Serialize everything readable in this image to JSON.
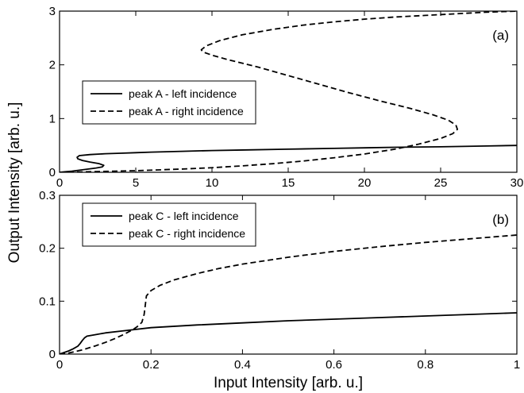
{
  "figure": {
    "ylabel": "Output Intensity [arb. u.]",
    "xlabel": "Input Intensity [arb. u.]"
  },
  "colors": {
    "line": "#000000",
    "background": "#ffffff"
  },
  "chart_data": [
    {
      "type": "line",
      "panel_label": "(a)",
      "xlim": [
        0,
        30
      ],
      "ylim": [
        0,
        3
      ],
      "x_ticks": [
        0,
        5,
        10,
        15,
        20,
        25,
        30
      ],
      "x_tick_labels": [
        "0",
        "5",
        "10",
        "15",
        "20",
        "25",
        "30"
      ],
      "y_ticks": [
        0,
        1,
        2,
        3
      ],
      "y_tick_labels": [
        "0",
        "1",
        "2",
        "3"
      ],
      "legend_placement": "middle-left",
      "series": [
        {
          "name": "peak A - left incidence",
          "style": "solid",
          "x": [
            0,
            0.4,
            0.8,
            1.2,
            1.6,
            2.0,
            2.4,
            2.8,
            2.9,
            2.6,
            2.0,
            1.5,
            1.2,
            1.15,
            1.3,
            2,
            3,
            4,
            5,
            6,
            8,
            10,
            12,
            15,
            18,
            20,
            22,
            25,
            28,
            30
          ],
          "y": [
            0,
            0.01,
            0.02,
            0.035,
            0.05,
            0.065,
            0.08,
            0.1,
            0.13,
            0.16,
            0.19,
            0.22,
            0.25,
            0.28,
            0.31,
            0.33,
            0.345,
            0.355,
            0.365,
            0.375,
            0.39,
            0.405,
            0.415,
            0.43,
            0.445,
            0.455,
            0.465,
            0.475,
            0.49,
            0.5
          ]
        },
        {
          "name": "peak A - right incidence",
          "style": "dashed",
          "x": [
            0,
            2,
            5,
            8,
            10,
            12,
            14,
            16,
            18,
            20,
            22,
            23.5,
            25,
            25.8,
            26.1,
            26,
            25.5,
            24.5,
            23,
            21,
            19,
            17,
            15,
            13,
            11,
            10,
            9.4,
            9.3,
            9.6,
            10.5,
            12,
            14,
            16,
            18,
            20,
            22,
            24,
            26,
            28,
            30
          ],
          "y": [
            0,
            0.01,
            0.03,
            0.06,
            0.085,
            0.12,
            0.16,
            0.21,
            0.27,
            0.34,
            0.43,
            0.52,
            0.63,
            0.72,
            0.8,
            0.88,
            0.97,
            1.07,
            1.19,
            1.33,
            1.48,
            1.64,
            1.8,
            1.96,
            2.1,
            2.18,
            2.24,
            2.28,
            2.35,
            2.45,
            2.56,
            2.66,
            2.74,
            2.8,
            2.85,
            2.89,
            2.92,
            2.95,
            2.98,
            3.0
          ]
        }
      ]
    },
    {
      "type": "line",
      "panel_label": "(b)",
      "xlim": [
        0,
        1
      ],
      "ylim": [
        0,
        0.3
      ],
      "x_ticks": [
        0,
        0.2,
        0.4,
        0.6,
        0.8,
        1
      ],
      "x_tick_labels": [
        "0",
        "0.2",
        "0.4",
        "0.6",
        "0.8",
        "1"
      ],
      "y_ticks": [
        0,
        0.1,
        0.2,
        0.3
      ],
      "y_tick_labels": [
        "0",
        "0.1",
        "0.2",
        "0.3"
      ],
      "legend_placement": "top-left",
      "series": [
        {
          "name": "peak C - left incidence",
          "style": "solid",
          "x": [
            0,
            0.01,
            0.02,
            0.03,
            0.04,
            0.045,
            0.05,
            0.055,
            0.06,
            0.08,
            0.1,
            0.15,
            0.2,
            0.3,
            0.4,
            0.5,
            0.6,
            0.7,
            0.8,
            0.9,
            1.0
          ],
          "y": [
            0,
            0.003,
            0.006,
            0.01,
            0.015,
            0.02,
            0.026,
            0.031,
            0.034,
            0.037,
            0.04,
            0.045,
            0.05,
            0.055,
            0.059,
            0.063,
            0.066,
            0.069,
            0.072,
            0.075,
            0.078
          ]
        },
        {
          "name": "peak C - right incidence",
          "style": "dashed",
          "x": [
            0,
            0.02,
            0.05,
            0.08,
            0.1,
            0.12,
            0.14,
            0.16,
            0.17,
            0.18,
            0.185,
            0.19,
            0.2,
            0.22,
            0.25,
            0.3,
            0.35,
            0.4,
            0.5,
            0.6,
            0.7,
            0.8,
            0.9,
            1.0
          ],
          "y": [
            0,
            0.002,
            0.008,
            0.016,
            0.022,
            0.029,
            0.037,
            0.046,
            0.052,
            0.06,
            0.075,
            0.11,
            0.12,
            0.13,
            0.14,
            0.152,
            0.162,
            0.17,
            0.183,
            0.194,
            0.203,
            0.211,
            0.218,
            0.225
          ]
        }
      ]
    }
  ]
}
